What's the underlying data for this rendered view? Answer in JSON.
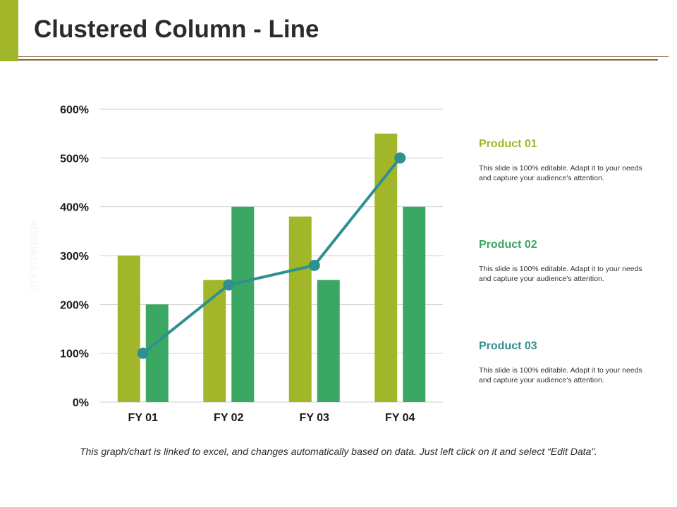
{
  "header": {
    "title": "Clustered Column - Line",
    "accent_color": "#a2b629",
    "rule_color": "#8a6a3a"
  },
  "chart_data": {
    "type": "bar",
    "title": "",
    "categories": [
      "FY 01",
      "FY 02",
      "FY 03",
      "FY 04"
    ],
    "series": [
      {
        "name": "Product 01",
        "kind": "column",
        "color": "#a2b629",
        "values": [
          300,
          250,
          380,
          550
        ]
      },
      {
        "name": "Product 02",
        "kind": "column",
        "color": "#3aa862",
        "values": [
          200,
          400,
          250,
          400
        ]
      },
      {
        "name": "Product 03",
        "kind": "line",
        "color": "#2e9190",
        "values": [
          100,
          240,
          280,
          500
        ]
      }
    ],
    "ylim": [
      0,
      600
    ],
    "yticks": [
      0,
      100,
      200,
      300,
      400,
      500,
      600
    ],
    "ytick_suffix": "%",
    "ylabel": "In Percentage",
    "xlabel": "",
    "grid": true,
    "legend_position": "right"
  },
  "legend": {
    "items": [
      {
        "title": "Product 01",
        "color": "#a2b629",
        "description": "This slide is 100% editable. Adapt it to your needs and capture your audience's attention."
      },
      {
        "title": "Product 02",
        "color": "#3aa862",
        "description": "This slide is 100% editable. Adapt it to your needs and capture your audience's attention."
      },
      {
        "title": "Product 03",
        "color": "#2e9190",
        "description": "This slide is 100% editable. Adapt it to your needs and capture your audience's attention."
      }
    ]
  },
  "footer": {
    "note": "This graph/chart is linked to excel, and changes automatically based on data. Just left click on it and select “Edit Data”."
  }
}
